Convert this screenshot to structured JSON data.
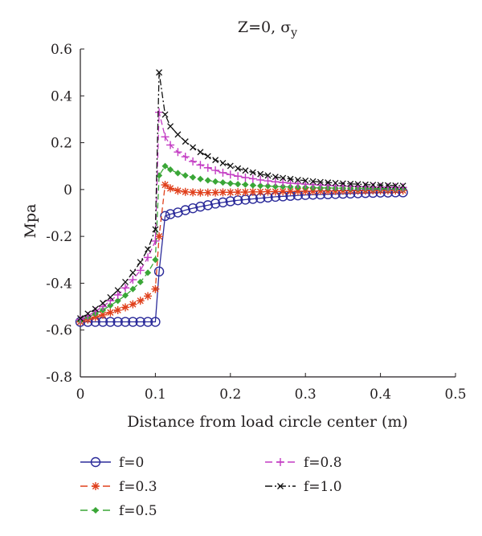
{
  "chart_data": {
    "type": "line",
    "title": "Z=0, σ",
    "title_subscript": "y",
    "xlabel": "Distance from load circle center (m)",
    "ylabel": "Mpa",
    "xlim": [
      0,
      0.5
    ],
    "ylim": [
      -0.8,
      0.6
    ],
    "x_ticks": [
      "0",
      "0.1",
      "0.2",
      "0.3",
      "0.4",
      "0.5"
    ],
    "y_ticks": [
      "-0.8",
      "-0.6",
      "-0.4",
      "-0.2",
      "0",
      "0.2",
      "0.4",
      "0.6"
    ],
    "grid": false,
    "legend_position": "bottom",
    "series": [
      {
        "name": "f=0",
        "color": "#2b2b9a",
        "marker": "circle",
        "dash": "solid",
        "points": [
          [
            0.0,
            -0.565
          ],
          [
            0.01,
            -0.565
          ],
          [
            0.02,
            -0.565
          ],
          [
            0.03,
            -0.565
          ],
          [
            0.04,
            -0.565
          ],
          [
            0.05,
            -0.565
          ],
          [
            0.06,
            -0.565
          ],
          [
            0.07,
            -0.565
          ],
          [
            0.08,
            -0.565
          ],
          [
            0.09,
            -0.565
          ],
          [
            0.1,
            -0.565
          ],
          [
            0.105,
            -0.35
          ],
          [
            0.113,
            -0.113
          ],
          [
            0.12,
            -0.105
          ],
          [
            0.13,
            -0.098
          ],
          [
            0.14,
            -0.088
          ],
          [
            0.15,
            -0.08
          ],
          [
            0.16,
            -0.073
          ],
          [
            0.17,
            -0.067
          ],
          [
            0.18,
            -0.06
          ],
          [
            0.19,
            -0.055
          ],
          [
            0.2,
            -0.05
          ],
          [
            0.21,
            -0.046
          ],
          [
            0.22,
            -0.043
          ],
          [
            0.23,
            -0.04
          ],
          [
            0.24,
            -0.037
          ],
          [
            0.25,
            -0.034
          ],
          [
            0.26,
            -0.031
          ],
          [
            0.27,
            -0.029
          ],
          [
            0.28,
            -0.027
          ],
          [
            0.29,
            -0.025
          ],
          [
            0.3,
            -0.023
          ],
          [
            0.31,
            -0.022
          ],
          [
            0.32,
            -0.021
          ],
          [
            0.33,
            -0.02
          ],
          [
            0.34,
            -0.019
          ],
          [
            0.35,
            -0.018
          ],
          [
            0.36,
            -0.017
          ],
          [
            0.37,
            -0.016
          ],
          [
            0.38,
            -0.015
          ],
          [
            0.39,
            -0.014
          ],
          [
            0.4,
            -0.013
          ],
          [
            0.41,
            -0.013
          ],
          [
            0.42,
            -0.012
          ],
          [
            0.43,
            -0.012
          ]
        ]
      },
      {
        "name": "f=0.3",
        "color": "#e0401c",
        "marker": "asterisk",
        "dash": "dashed",
        "points": [
          [
            0.0,
            -0.565
          ],
          [
            0.01,
            -0.555
          ],
          [
            0.02,
            -0.545
          ],
          [
            0.03,
            -0.535
          ],
          [
            0.04,
            -0.525
          ],
          [
            0.05,
            -0.515
          ],
          [
            0.06,
            -0.503
          ],
          [
            0.07,
            -0.49
          ],
          [
            0.08,
            -0.475
          ],
          [
            0.09,
            -0.455
          ],
          [
            0.1,
            -0.425
          ],
          [
            0.105,
            -0.2
          ],
          [
            0.113,
            0.02
          ],
          [
            0.12,
            0.005
          ],
          [
            0.13,
            -0.005
          ],
          [
            0.14,
            -0.01
          ],
          [
            0.15,
            -0.012
          ],
          [
            0.16,
            -0.013
          ],
          [
            0.17,
            -0.013
          ],
          [
            0.18,
            -0.013
          ],
          [
            0.19,
            -0.012
          ],
          [
            0.2,
            -0.012
          ],
          [
            0.21,
            -0.011
          ],
          [
            0.22,
            -0.011
          ],
          [
            0.23,
            -0.01
          ],
          [
            0.24,
            -0.01
          ],
          [
            0.25,
            -0.009
          ],
          [
            0.26,
            -0.009
          ],
          [
            0.27,
            -0.008
          ],
          [
            0.28,
            -0.008
          ],
          [
            0.29,
            -0.007
          ],
          [
            0.3,
            -0.007
          ],
          [
            0.31,
            -0.007
          ],
          [
            0.32,
            -0.006
          ],
          [
            0.33,
            -0.006
          ],
          [
            0.34,
            -0.006
          ],
          [
            0.35,
            -0.005
          ],
          [
            0.36,
            -0.005
          ],
          [
            0.37,
            -0.005
          ],
          [
            0.38,
            -0.005
          ],
          [
            0.39,
            -0.004
          ],
          [
            0.4,
            -0.004
          ],
          [
            0.41,
            -0.004
          ],
          [
            0.42,
            -0.004
          ],
          [
            0.43,
            -0.004
          ]
        ]
      },
      {
        "name": "f=0.5",
        "color": "#3aa637",
        "marker": "diamond",
        "dash": "dashed",
        "points": [
          [
            0.0,
            -0.56
          ],
          [
            0.01,
            -0.545
          ],
          [
            0.02,
            -0.53
          ],
          [
            0.03,
            -0.515
          ],
          [
            0.04,
            -0.495
          ],
          [
            0.05,
            -0.475
          ],
          [
            0.06,
            -0.452
          ],
          [
            0.07,
            -0.425
          ],
          [
            0.08,
            -0.395
          ],
          [
            0.09,
            -0.355
          ],
          [
            0.1,
            -0.3
          ],
          [
            0.105,
            0.06
          ],
          [
            0.113,
            0.1
          ],
          [
            0.12,
            0.085
          ],
          [
            0.13,
            0.07
          ],
          [
            0.14,
            0.06
          ],
          [
            0.15,
            0.052
          ],
          [
            0.16,
            0.045
          ],
          [
            0.17,
            0.039
          ],
          [
            0.18,
            0.034
          ],
          [
            0.19,
            0.03
          ],
          [
            0.2,
            0.026
          ],
          [
            0.21,
            0.023
          ],
          [
            0.22,
            0.021
          ],
          [
            0.23,
            0.018
          ],
          [
            0.24,
            0.016
          ],
          [
            0.25,
            0.015
          ],
          [
            0.26,
            0.013
          ],
          [
            0.27,
            0.012
          ],
          [
            0.28,
            0.011
          ],
          [
            0.29,
            0.01
          ],
          [
            0.3,
            0.009
          ],
          [
            0.31,
            0.008
          ],
          [
            0.32,
            0.007
          ],
          [
            0.33,
            0.007
          ],
          [
            0.34,
            0.006
          ],
          [
            0.35,
            0.006
          ],
          [
            0.36,
            0.005
          ],
          [
            0.37,
            0.005
          ],
          [
            0.38,
            0.005
          ],
          [
            0.39,
            0.004
          ],
          [
            0.4,
            0.004
          ],
          [
            0.41,
            0.004
          ],
          [
            0.42,
            0.003
          ],
          [
            0.43,
            0.003
          ]
        ]
      },
      {
        "name": "f=0.8",
        "color": "#c33cc3",
        "marker": "plus",
        "dash": "dashed",
        "points": [
          [
            0.0,
            -0.555
          ],
          [
            0.01,
            -0.54
          ],
          [
            0.02,
            -0.52
          ],
          [
            0.03,
            -0.5
          ],
          [
            0.04,
            -0.475
          ],
          [
            0.05,
            -0.45
          ],
          [
            0.06,
            -0.42
          ],
          [
            0.07,
            -0.385
          ],
          [
            0.08,
            -0.345
          ],
          [
            0.09,
            -0.29
          ],
          [
            0.1,
            -0.22
          ],
          [
            0.105,
            0.33
          ],
          [
            0.113,
            0.225
          ],
          [
            0.12,
            0.19
          ],
          [
            0.13,
            0.16
          ],
          [
            0.14,
            0.14
          ],
          [
            0.15,
            0.12
          ],
          [
            0.16,
            0.105
          ],
          [
            0.17,
            0.093
          ],
          [
            0.18,
            0.082
          ],
          [
            0.19,
            0.072
          ],
          [
            0.2,
            0.064
          ],
          [
            0.21,
            0.057
          ],
          [
            0.22,
            0.051
          ],
          [
            0.23,
            0.046
          ],
          [
            0.24,
            0.041
          ],
          [
            0.25,
            0.037
          ],
          [
            0.26,
            0.033
          ],
          [
            0.27,
            0.03
          ],
          [
            0.28,
            0.027
          ],
          [
            0.29,
            0.025
          ],
          [
            0.3,
            0.023
          ],
          [
            0.31,
            0.021
          ],
          [
            0.32,
            0.019
          ],
          [
            0.33,
            0.018
          ],
          [
            0.34,
            0.016
          ],
          [
            0.35,
            0.015
          ],
          [
            0.36,
            0.014
          ],
          [
            0.37,
            0.013
          ],
          [
            0.38,
            0.012
          ],
          [
            0.39,
            0.011
          ],
          [
            0.4,
            0.011
          ],
          [
            0.41,
            0.01
          ],
          [
            0.42,
            0.01
          ],
          [
            0.43,
            0.009
          ]
        ]
      },
      {
        "name": "f=1.0",
        "color": "#111111",
        "marker": "x",
        "dash": "dashdot",
        "points": [
          [
            0.0,
            -0.55
          ],
          [
            0.01,
            -0.53
          ],
          [
            0.02,
            -0.51
          ],
          [
            0.03,
            -0.485
          ],
          [
            0.04,
            -0.46
          ],
          [
            0.05,
            -0.43
          ],
          [
            0.06,
            -0.395
          ],
          [
            0.07,
            -0.355
          ],
          [
            0.08,
            -0.31
          ],
          [
            0.09,
            -0.255
          ],
          [
            0.1,
            -0.17
          ],
          [
            0.105,
            0.5
          ],
          [
            0.113,
            0.32
          ],
          [
            0.12,
            0.27
          ],
          [
            0.13,
            0.235
          ],
          [
            0.14,
            0.205
          ],
          [
            0.15,
            0.18
          ],
          [
            0.16,
            0.16
          ],
          [
            0.17,
            0.142
          ],
          [
            0.18,
            0.126
          ],
          [
            0.19,
            0.113
          ],
          [
            0.2,
            0.101
          ],
          [
            0.21,
            0.09
          ],
          [
            0.22,
            0.081
          ],
          [
            0.23,
            0.073
          ],
          [
            0.24,
            0.066
          ],
          [
            0.25,
            0.06
          ],
          [
            0.26,
            0.054
          ],
          [
            0.27,
            0.049
          ],
          [
            0.28,
            0.045
          ],
          [
            0.29,
            0.041
          ],
          [
            0.3,
            0.038
          ],
          [
            0.31,
            0.035
          ],
          [
            0.32,
            0.032
          ],
          [
            0.33,
            0.03
          ],
          [
            0.34,
            0.028
          ],
          [
            0.35,
            0.026
          ],
          [
            0.36,
            0.024
          ],
          [
            0.37,
            0.023
          ],
          [
            0.38,
            0.021
          ],
          [
            0.39,
            0.02
          ],
          [
            0.4,
            0.019
          ],
          [
            0.41,
            0.018
          ],
          [
            0.42,
            0.017
          ],
          [
            0.43,
            0.016
          ]
        ]
      }
    ]
  }
}
